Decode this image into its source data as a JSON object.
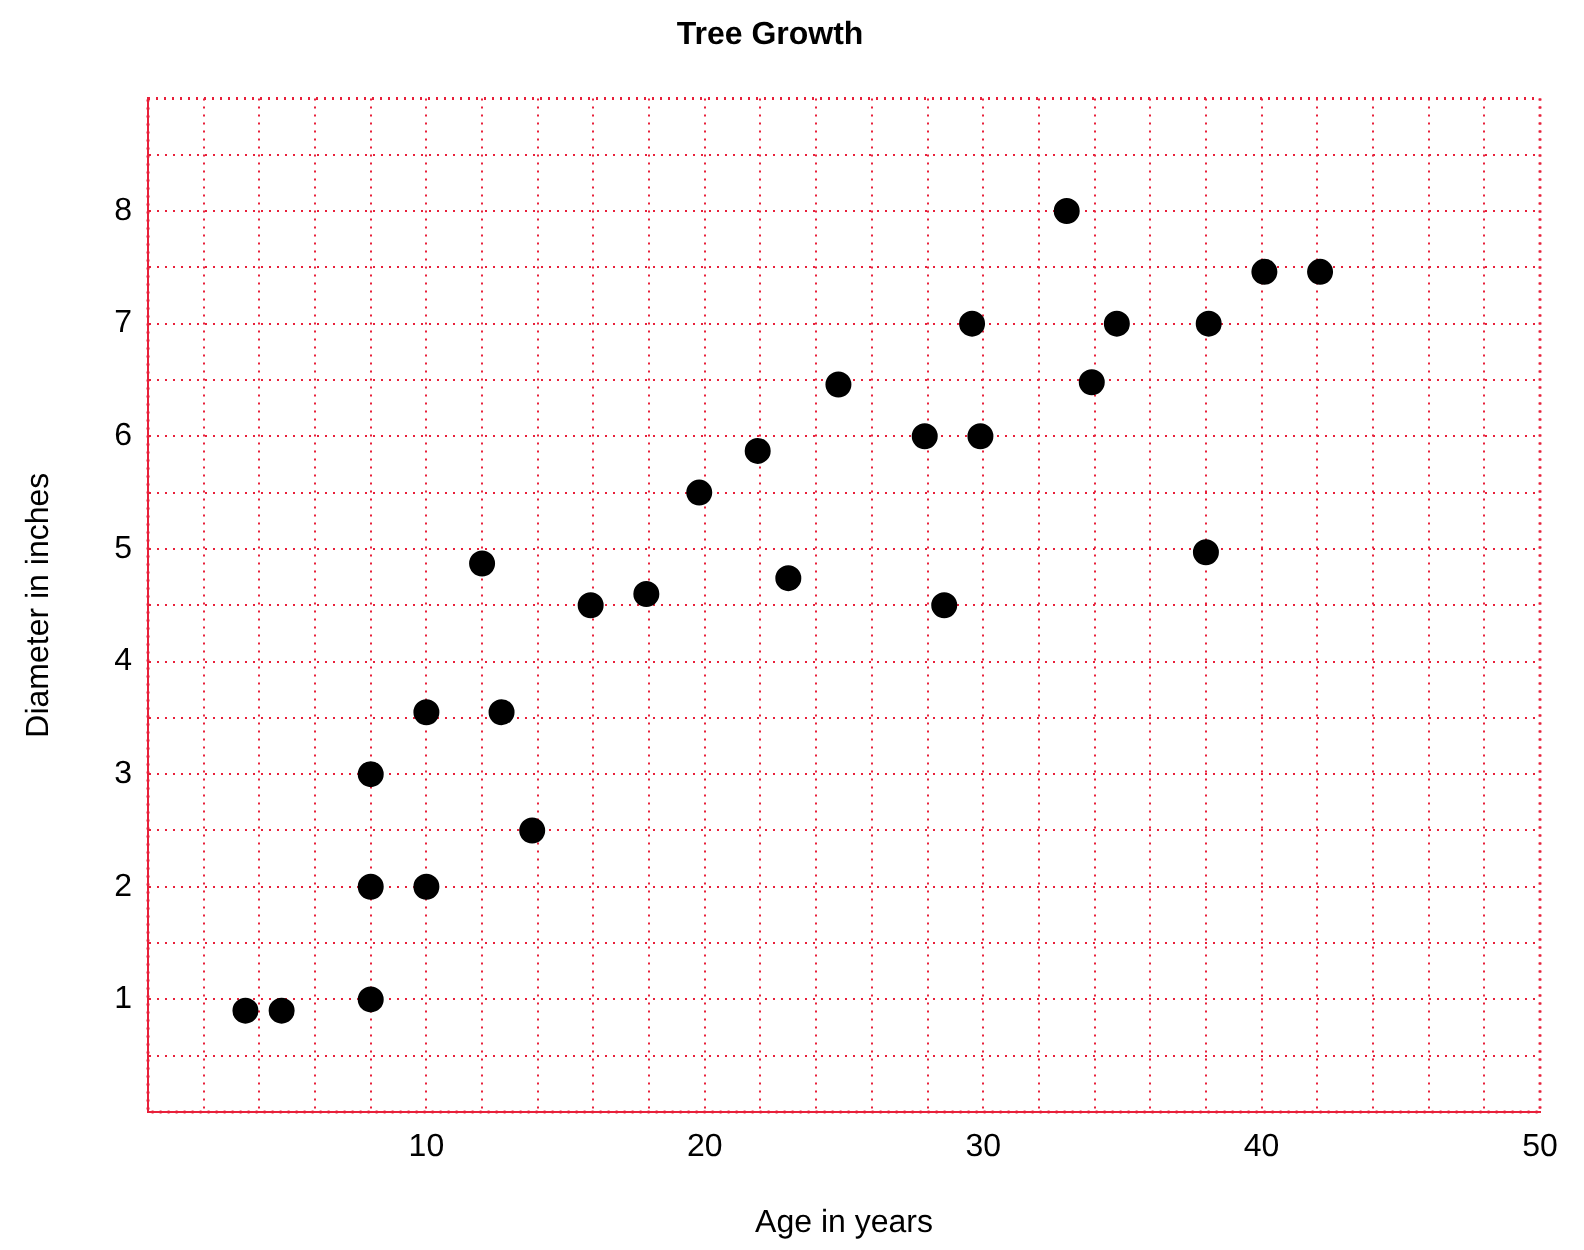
{
  "chart_data": {
    "type": "scatter",
    "title": "Tree Growth",
    "xlabel": "Age in years",
    "ylabel": "Diameter in inches",
    "x": [
      3.5,
      4.8,
      8,
      8,
      8,
      10,
      10,
      12,
      12.7,
      13.8,
      15.9,
      17.9,
      19.8,
      21.9,
      23,
      24.8,
      27.9,
      28.6,
      29.6,
      29.9,
      33,
      33.9,
      34.8,
      38,
      38.1,
      40.1,
      42.1
    ],
    "series": [
      {
        "color": "#000000",
        "values": [
          0.9,
          0.9,
          1,
          2,
          3,
          2,
          3.55,
          4.87,
          3.55,
          2.5,
          4.5,
          4.6,
          5.5,
          5.87,
          4.74,
          6.46,
          6,
          4.5,
          7,
          6,
          8,
          6.48,
          7,
          4.97,
          7,
          7.46,
          7.46
        ]
      }
    ],
    "xlim": [
      0,
      50
    ],
    "xticks": [
      {
        "value": 2,
        "label": null
      },
      {
        "value": 4,
        "label": null
      },
      {
        "value": 6,
        "label": null
      },
      {
        "value": 8,
        "label": null
      },
      10,
      {
        "value": 12,
        "label": null
      },
      {
        "value": 14,
        "label": null
      },
      {
        "value": 16,
        "label": null
      },
      {
        "value": 18,
        "label": null
      },
      20,
      {
        "value": 22,
        "label": null
      },
      {
        "value": 24,
        "label": null
      },
      {
        "value": 26,
        "label": null
      },
      {
        "value": 28,
        "label": null
      },
      30,
      {
        "value": 32,
        "label": null
      },
      {
        "value": 34,
        "label": null
      },
      {
        "value": 36,
        "label": null
      },
      {
        "value": 38,
        "label": null
      },
      40,
      {
        "value": 42,
        "label": null
      },
      {
        "value": 44,
        "label": null
      },
      {
        "value": 46,
        "label": null
      },
      {
        "value": 48,
        "label": null
      },
      50
    ],
    "ylim": [
      0,
      9
    ],
    "yticks": [
      {
        "value": 0.5,
        "label": null
      },
      1,
      {
        "value": 1.5,
        "label": null
      },
      2,
      {
        "value": 2.5,
        "label": null
      },
      3,
      {
        "value": 3.5,
        "label": null
      },
      4,
      {
        "value": 4.5,
        "label": null
      },
      5,
      {
        "value": 5.5,
        "label": null
      },
      6,
      {
        "value": 6.5,
        "label": null
      },
      7,
      {
        "value": 7.5,
        "label": null
      },
      8,
      {
        "value": 8.5,
        "label": null
      }
    ],
    "grid": true,
    "marker": "circle",
    "legend": false
  }
}
